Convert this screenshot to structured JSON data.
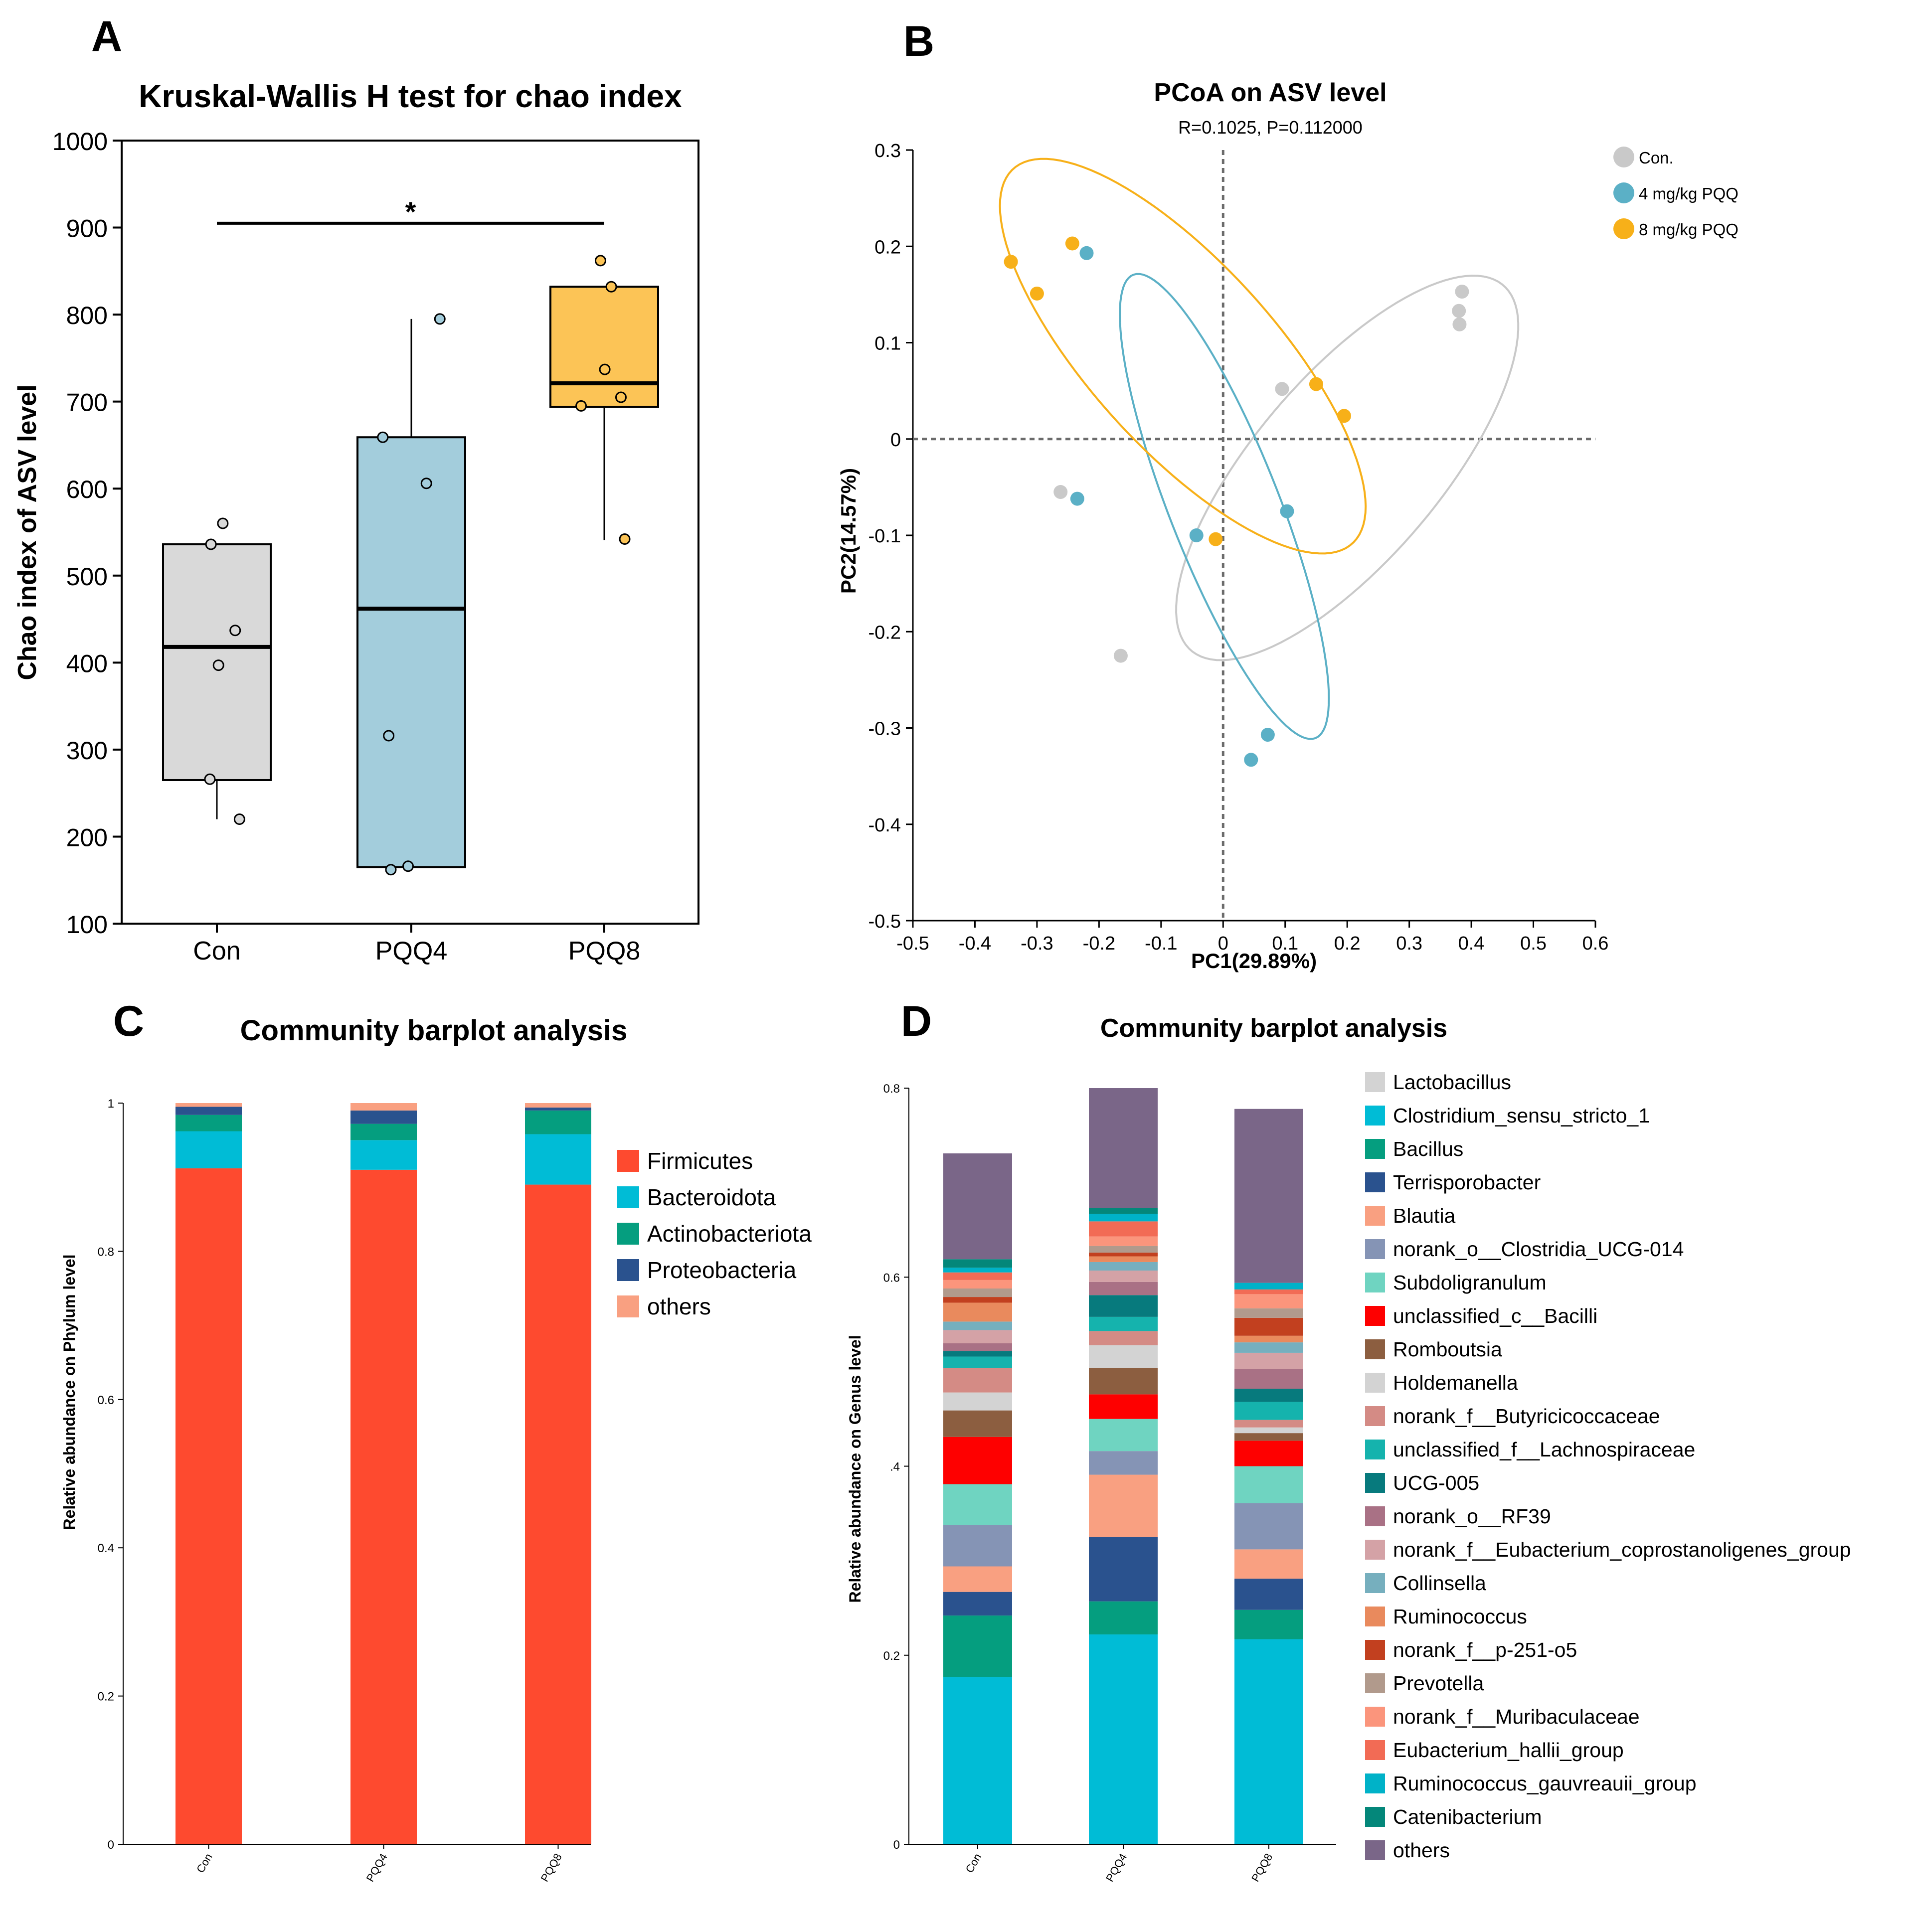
{
  "panels": [
    {
      "letter": "A",
      "type": "box",
      "title": "Kruskal-Wallis H test for chao index",
      "ylabel": "Chao index of ASV level",
      "ylim": [
        100,
        1000
      ],
      "yticks": [
        100,
        200,
        300,
        400,
        500,
        600,
        700,
        800,
        900,
        1000
      ],
      "groups": [
        {
          "name": "Con",
          "color": "#d9d9d9",
          "min": 220,
          "q1": 265,
          "median": 418,
          "q3": 536,
          "max": 536,
          "points": [
            {
              "x": 0.11,
              "y": 560
            },
            {
              "x": -0.11,
              "y": 536
            },
            {
              "x": 0.34,
              "y": 437
            },
            {
              "x": 0.03,
              "y": 397
            },
            {
              "x": -0.13,
              "y": 266
            },
            {
              "x": 0.42,
              "y": 220
            }
          ]
        },
        {
          "name": "PQQ4",
          "color": "#a3cddc",
          "min": 165,
          "q1": 165,
          "median": 462,
          "q3": 659,
          "max": 795,
          "points": [
            {
              "x": 0.53,
              "y": 795
            },
            {
              "x": -0.53,
              "y": 659
            },
            {
              "x": 0.28,
              "y": 606
            },
            {
              "x": -0.42,
              "y": 316
            },
            {
              "x": -0.38,
              "y": 162
            },
            {
              "x": -0.06,
              "y": 166
            }
          ]
        },
        {
          "name": "PQQ8",
          "color": "#fcc456",
          "min": 541,
          "q1": 694,
          "median": 721,
          "q3": 832,
          "max": 832,
          "points": [
            {
              "x": -0.07,
              "y": 862
            },
            {
              "x": 0.13,
              "y": 832
            },
            {
              "x": 0.01,
              "y": 737
            },
            {
              "x": 0.31,
              "y": 705
            },
            {
              "x": -0.43,
              "y": 695
            },
            {
              "x": 0.38,
              "y": 542
            }
          ]
        }
      ],
      "significance": {
        "from": "Con",
        "to": "PQQ8",
        "y": 905,
        "label": "*"
      }
    },
    {
      "letter": "B",
      "type": "scatter",
      "title": "PCoA on ASV level",
      "subtitle": "R=0.1025, P=0.112000",
      "xlabel": "PC1(29.89%)",
      "ylabel": "PC2(14.57%)",
      "xlim": [
        -0.5,
        0.6
      ],
      "ylim": [
        -0.5,
        0.3
      ],
      "xticks": [
        "-0.5",
        "-0.4",
        "-0.3",
        "-0.2",
        "-0.1",
        "0",
        "0.1",
        "0.2",
        "0.3",
        "0.4",
        "0.5",
        "0.6"
      ],
      "yticks": [
        "0.3",
        "0.2",
        "0.1",
        "0",
        "-0.1",
        "-0.2",
        "-0.3",
        "-0.4",
        "-0.5"
      ],
      "series": [
        {
          "name": "Con.",
          "color": "#c9c9c9",
          "points": [
            [
              0.385,
              0.153
            ],
            [
              0.38,
              0.133
            ],
            [
              0.381,
              0.119
            ],
            [
              0.095,
              0.052
            ],
            [
              -0.262,
              -0.055
            ],
            [
              -0.165,
              -0.225
            ]
          ],
          "ellipse": {
            "cx": 0.2,
            "cy": -0.03,
            "rx": 0.32,
            "ry": 0.116,
            "angle": 33
          }
        },
        {
          "name": "4 mg/kg PQQ",
          "color": "#5bb0c6",
          "points": [
            [
              -0.22,
              0.193
            ],
            [
              -0.235,
              -0.062
            ],
            [
              -0.043,
              -0.1
            ],
            [
              0.103,
              -0.075
            ],
            [
              0.072,
              -0.307
            ],
            [
              0.045,
              -0.333
            ]
          ],
          "ellipse": {
            "cx": 0.002,
            "cy": -0.07,
            "rx": 0.283,
            "ry": 0.081,
            "angle": -57
          }
        },
        {
          "name": "8 mg/kg PQQ",
          "color": "#f7b019",
          "points": [
            [
              -0.342,
              0.184
            ],
            [
              -0.3,
              0.151
            ],
            [
              -0.243,
              0.203
            ],
            [
              0.15,
              0.057
            ],
            [
              0.195,
              0.024
            ],
            [
              -0.012,
              -0.104
            ]
          ],
          "ellipse": {
            "cx": -0.065,
            "cy": 0.086,
            "rx": 0.34,
            "ry": 0.115,
            "angle": -32
          }
        }
      ]
    },
    {
      "letter": "C",
      "type": "stacked-bar",
      "title": "Community barplot analysis",
      "ylabel": "Relative abundance on Phylum level",
      "ylim": [
        0,
        1
      ],
      "yticks": [
        "0",
        "0.2",
        "0.4",
        "0.6",
        "0.8",
        "1"
      ],
      "categories": [
        "Con",
        "PQQ4",
        "PQQ8"
      ],
      "series": [
        {
          "name": "Firmicutes",
          "color": "#fe4a2f",
          "values": [
            0.912,
            0.91,
            0.89
          ]
        },
        {
          "name": "Bacteroidota",
          "color": "#00bcd6",
          "values": [
            0.05,
            0.04,
            0.068
          ]
        },
        {
          "name": "Actinobacteriota",
          "color": "#059e7f",
          "values": [
            0.022,
            0.022,
            0.032
          ]
        },
        {
          "name": "Proteobacteria",
          "color": "#2a528e",
          "values": [
            0.011,
            0.018,
            0.004
          ]
        },
        {
          "name": "others",
          "color": "#f9a081",
          "values": [
            0.005,
            0.01,
            0.006
          ]
        }
      ]
    },
    {
      "letter": "D",
      "type": "stacked-bar",
      "title": "Community barplot analysis",
      "ylabel": "Relative abundance on Genus level",
      "ylim": [
        0,
        0.8
      ],
      "yticks": [
        "0",
        "0.2",
        ".4",
        "0.6",
        "0.8"
      ],
      "categories": [
        "Con",
        "PQQ4",
        "PQQ8"
      ],
      "series": [
        {
          "name": "Lactobacillus",
          "color": "#d3d3d3",
          "values": [
            0,
            0,
            0
          ]
        },
        {
          "name": "Clostridium_sensu_stricto_1",
          "color": "#00bcd6",
          "values": [
            0.177,
            0.222,
            0.217
          ]
        },
        {
          "name": "Bacillus",
          "color": "#059e7f",
          "values": [
            0.065,
            0.035,
            0.031
          ]
        },
        {
          "name": "Terrisporobacter",
          "color": "#2a528e",
          "values": [
            0.025,
            0.068,
            0.033
          ]
        },
        {
          "name": "Blautia",
          "color": "#f9a081",
          "values": [
            0.027,
            0.066,
            0.031
          ]
        },
        {
          "name": "norank_o__Clostridia_UCG-014",
          "color": "#8594b5",
          "values": [
            0.044,
            0.025,
            0.049
          ]
        },
        {
          "name": "Subdoligranulum",
          "color": "#6fd4c1",
          "values": [
            0.043,
            0.034,
            0.039
          ]
        },
        {
          "name": "unclassified_c__Bacilli",
          "color": "#fe0000",
          "values": [
            0.05,
            0.026,
            0.027
          ]
        },
        {
          "name": "Romboutsia",
          "color": "#8c5e40",
          "values": [
            0.028,
            0.028,
            0.008
          ]
        },
        {
          "name": "Holdemanella",
          "color": "#d3d3d3",
          "values": [
            0.019,
            0.024,
            0.006
          ]
        },
        {
          "name": "norank_f__Butyricicoccaceae",
          "color": "#d48b85",
          "values": [
            0.026,
            0.015,
            0.008
          ]
        },
        {
          "name": "unclassified_f__Lachnospiraceae",
          "color": "#15b3ad",
          "values": [
            0.012,
            0.015,
            0.019
          ]
        },
        {
          "name": "UCG-005",
          "color": "#077a7d",
          "values": [
            0.006,
            0.023,
            0.014
          ]
        },
        {
          "name": "norank_o__RF39",
          "color": "#a97185",
          "values": [
            0.008,
            0.014,
            0.021
          ]
        },
        {
          "name": "norank_f__Eubacterium_coprostanoligenes_group",
          "color": "#d4a2a6",
          "values": [
            0.014,
            0.012,
            0.017
          ]
        },
        {
          "name": "Collinsella",
          "color": "#76afbe",
          "values": [
            0.009,
            0.009,
            0.011
          ]
        },
        {
          "name": "Ruminococcus",
          "color": "#e98a5d",
          "values": [
            0.02,
            0.006,
            0.007
          ]
        },
        {
          "name": "norank_f__p-251-o5",
          "color": "#c2401f",
          "values": [
            0.006,
            0.004,
            0.019
          ]
        },
        {
          "name": "Prevotella",
          "color": "#b19a8c",
          "values": [
            0.009,
            0.007,
            0.01
          ]
        },
        {
          "name": "norank_f__Muribaculaceae",
          "color": "#fb957c",
          "values": [
            0.009,
            0.01,
            0.015
          ]
        },
        {
          "name": "Eubacterium_hallii_group",
          "color": "#f26b55",
          "values": [
            0.008,
            0.016,
            0.005
          ]
        },
        {
          "name": "Ruminococcus_gauvreauii_group",
          "color": "#00b2c8",
          "values": [
            0.005,
            0.008,
            0.007
          ]
        },
        {
          "name": "Catenibacterium",
          "color": "#04877a",
          "values": [
            0.009,
            0.006,
            0
          ]
        },
        {
          "name": "others",
          "color": "#7a6688",
          "values": [
            0.112,
            0.127,
            0.184
          ]
        }
      ]
    }
  ]
}
